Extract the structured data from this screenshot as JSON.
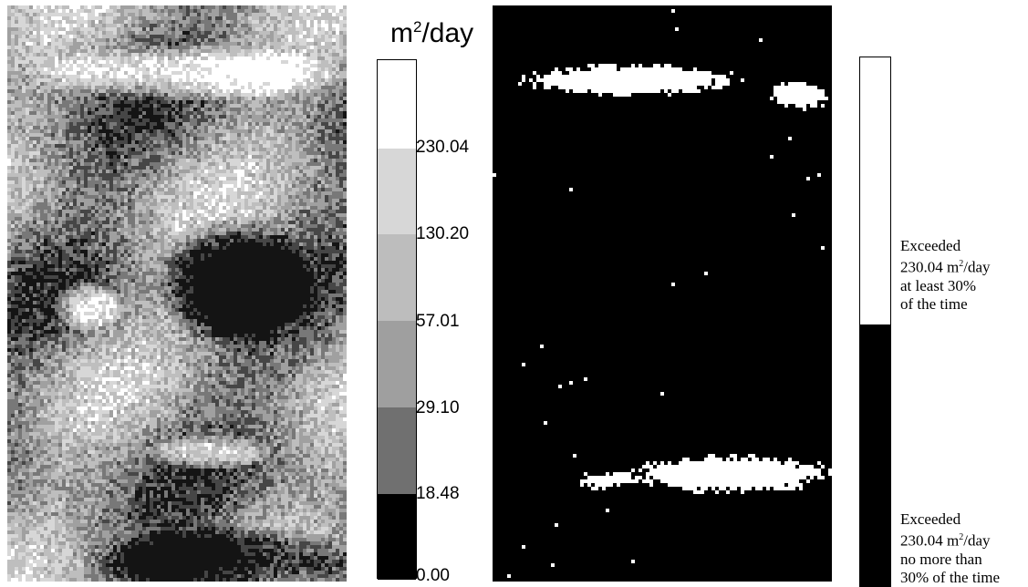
{
  "left_panel": {
    "unit": {
      "base": "m",
      "exp": "2",
      "suffix": "/day"
    },
    "legend": [
      {
        "label": "230.04",
        "color": "#ffffff"
      },
      {
        "label": "130.20",
        "color": "#c9c9c9"
      },
      {
        "label": "57.01",
        "color": "#a8a8a8"
      },
      {
        "label": "29.10",
        "color": "#858585"
      },
      {
        "label": "18.48",
        "color": "#4e4e4e"
      },
      {
        "label": "0.00",
        "color": "#000000"
      }
    ]
  },
  "right_panel": {
    "legend_top": {
      "color": "#ffffff",
      "line1": "Exceeded",
      "line2_value": "230.04 m",
      "line2_exp": "2",
      "line2_suffix": "/day",
      "line3": "at least 30%",
      "line4": "of the time"
    },
    "legend_bottom": {
      "color": "#000000",
      "line1": "Exceeded",
      "line2_value": "230.04 m",
      "line2_exp": "2",
      "line2_suffix": "/day",
      "line3": "no more than",
      "line4": "30% of the time"
    }
  }
}
